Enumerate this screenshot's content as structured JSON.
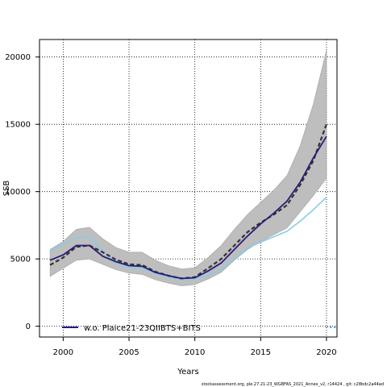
{
  "chart_data": {
    "type": "line",
    "xlabel": "Years",
    "ylabel": "SSB",
    "xlim": [
      1998.2,
      2020.8
    ],
    "ylim": [
      -800,
      21300
    ],
    "xticks": [
      2000,
      2005,
      2010,
      2015,
      2020
    ],
    "yticks": [
      0,
      5000,
      10000,
      15000,
      20000
    ],
    "grid": true,
    "legend_position": "bottom-left",
    "x": [
      1999,
      2000,
      2001,
      2002,
      2003,
      2004,
      2005,
      2006,
      2007,
      2008,
      2009,
      2010,
      2011,
      2012,
      2013,
      2014,
      2015,
      2016,
      2017,
      2018,
      2019,
      2020
    ],
    "confidence_band": {
      "upper": [
        5700,
        6300,
        7200,
        7350,
        6500,
        5850,
        5500,
        5500,
        4900,
        4500,
        4250,
        4350,
        5100,
        6000,
        7200,
        8300,
        9200,
        10100,
        11200,
        13400,
        16500,
        20500
      ],
      "lower": [
        3700,
        4300,
        4900,
        5000,
        4600,
        4200,
        3950,
        3850,
        3450,
        3200,
        3000,
        3100,
        3500,
        4000,
        4900,
        5700,
        6300,
        6800,
        7300,
        8500,
        9700,
        11000
      ]
    },
    "series": [
      {
        "name": "w.o. Plaice21-23QIIBTS+BITS",
        "style": "solid",
        "color": "#2a1b7a",
        "values": [
          4900,
          5300,
          6000,
          6000,
          5200,
          4800,
          4500,
          4450,
          4000,
          3750,
          3550,
          3600,
          4100,
          4700,
          5700,
          6700,
          7600,
          8400,
          9300,
          10700,
          12500,
          14100
        ]
      },
      {
        "style": "dashed",
        "color": "#333333",
        "values": [
          4550,
          5100,
          5900,
          6000,
          5500,
          4950,
          4600,
          4550,
          4050,
          3750,
          3550,
          3650,
          4300,
          5000,
          6000,
          7000,
          7700,
          8300,
          9000,
          10500,
          12300,
          15000
        ]
      },
      {
        "style": "solid",
        "color": "#87cde8",
        "values": [
          5600,
          6100,
          6600,
          6650,
          5600,
          4700,
          4350,
          4300,
          3950,
          3650,
          3450,
          3500,
          3800,
          4200,
          5000,
          5800,
          6250,
          6650,
          7050,
          7800,
          8650,
          9600
        ]
      }
    ],
    "series_colors": {
      "band": "#bebebe"
    }
  },
  "footer": "stockassessment.org, ple.27.21-23_WGBFAS_2021_Annex_v2, r14424 , git: c28bdc2a44ad"
}
